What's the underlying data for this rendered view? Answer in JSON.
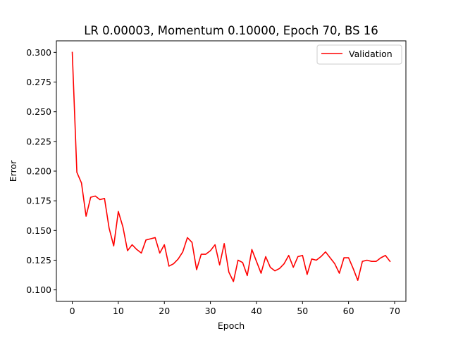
{
  "chart_data": {
    "type": "line",
    "title": "LR 0.00003, Momentum 0.10000, Epoch 70, BS 16",
    "xlabel": "Epoch",
    "ylabel": "Error",
    "xlim": [
      -3.45,
      72.45
    ],
    "ylim": [
      0.0903,
      0.3097
    ],
    "x_ticks": [
      0,
      10,
      20,
      30,
      40,
      50,
      60,
      70
    ],
    "y_ticks": [
      0.1,
      0.125,
      0.15,
      0.175,
      0.2,
      0.225,
      0.25,
      0.275,
      0.3
    ],
    "x_tick_labels": [
      "0",
      "10",
      "20",
      "30",
      "40",
      "50",
      "60",
      "70"
    ],
    "y_tick_labels": [
      "0.100",
      "0.125",
      "0.150",
      "0.175",
      "0.200",
      "0.225",
      "0.250",
      "0.275",
      "0.300"
    ],
    "grid": false,
    "legend_position": "top-right",
    "series": [
      {
        "name": "Validation",
        "color": "#ff0000",
        "x": [
          0,
          1,
          2,
          3,
          4,
          5,
          6,
          7,
          8,
          9,
          10,
          11,
          12,
          13,
          14,
          15,
          16,
          17,
          18,
          19,
          20,
          21,
          22,
          23,
          24,
          25,
          26,
          27,
          28,
          29,
          30,
          31,
          32,
          33,
          34,
          35,
          36,
          37,
          38,
          39,
          40,
          41,
          42,
          43,
          44,
          45,
          46,
          47,
          48,
          49,
          50,
          51,
          52,
          53,
          54,
          55,
          56,
          57,
          58,
          59,
          60,
          61,
          62,
          63,
          64,
          65,
          66,
          67,
          68,
          69
        ],
        "values": [
          0.3,
          0.199,
          0.19,
          0.162,
          0.178,
          0.179,
          0.176,
          0.177,
          0.152,
          0.137,
          0.166,
          0.153,
          0.133,
          0.138,
          0.134,
          0.131,
          0.142,
          0.143,
          0.144,
          0.131,
          0.138,
          0.12,
          0.122,
          0.126,
          0.132,
          0.144,
          0.14,
          0.117,
          0.13,
          0.13,
          0.133,
          0.138,
          0.121,
          0.139,
          0.115,
          0.107,
          0.125,
          0.123,
          0.112,
          0.134,
          0.124,
          0.114,
          0.128,
          0.119,
          0.116,
          0.118,
          0.122,
          0.129,
          0.119,
          0.128,
          0.129,
          0.113,
          0.126,
          0.125,
          0.128,
          0.132,
          0.127,
          0.122,
          0.114,
          0.127,
          0.127,
          0.118,
          0.108,
          0.124,
          0.125,
          0.124,
          0.124,
          0.127,
          0.129,
          0.124
        ]
      }
    ]
  }
}
